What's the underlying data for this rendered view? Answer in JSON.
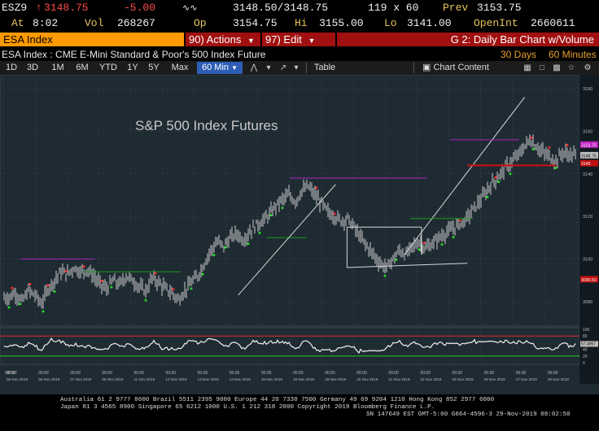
{
  "quote": {
    "ticker": "ESZ9",
    "last": "3148.75",
    "change": "-5.00",
    "bid_ask": "3148.50/3148.75",
    "size": "119 x 60",
    "prev_label": "Prev",
    "prev": "3153.75",
    "at_label": "At",
    "time": "8:02",
    "vol_label": "Vol",
    "volume": "268267",
    "op_label": "Op",
    "open": "3154.75",
    "hi_label": "Hi",
    "high": "3155.00",
    "lo_label": "Lo",
    "low": "3141.00",
    "oi_label": "OpenInt",
    "open_interest": "2660611"
  },
  "command": {
    "security": "ESA Index",
    "actions": "Actions",
    "actions_code": "90)",
    "edit": "Edit",
    "edit_code": "97)",
    "chart_title": "G 2: Daily Bar Chart w/Volume"
  },
  "info": {
    "description": "ESA Index : CME E-Mini Standard & Poor's 500 Index Future",
    "period": "30 Days",
    "interval": "60 Minutes"
  },
  "toolbar": {
    "ranges": [
      "1D",
      "3D",
      "1M",
      "6M",
      "YTD",
      "1Y",
      "5Y",
      "Max"
    ],
    "interval_select": "60 Min",
    "table": "Table",
    "chart_content": "Chart Content"
  },
  "chart": {
    "annotation": "S&P 500 Index Futures",
    "y_ticks": [
      "3180",
      "3160",
      "3140",
      "3120",
      "3100",
      "3080"
    ],
    "price_badges": [
      "3153.75",
      "3148.75",
      "3145",
      "3090.50"
    ],
    "osc_ticks": [
      "100",
      "80",
      "60",
      "57.4957",
      "40",
      "20",
      "0"
    ],
    "time_labels": [
      "08:00",
      "05 Nov 2019",
      "06 Nov 2019",
      "07 Nov 2019",
      "08 Nov 2019",
      "11 Nov 2019",
      "12 Nov 2019",
      "13 Nov 2019",
      "14 Nov 2019",
      "15 Nov 2019",
      "18 Nov 2019",
      "19 Nov 2019",
      "20 Nov 2019",
      "21 Nov 2019",
      "22 Nov 2019",
      "25 Nov 2019",
      "26 Nov 2019",
      "27 Nov 2019",
      "29 Nov 2019"
    ]
  },
  "chart_data": {
    "type": "bar",
    "x_label_dates": [
      "05 Nov 2019",
      "06 Nov 2019",
      "07 Nov 2019",
      "08 Nov 2019",
      "11 Nov 2019",
      "12 Nov 2019",
      "13 Nov 2019",
      "14 Nov 2019",
      "15 Nov 2019",
      "18 Nov 2019",
      "19 Nov 2019",
      "20 Nov 2019",
      "21 Nov 2019",
      "22 Nov 2019",
      "25 Nov 2019",
      "26 Nov 2019",
      "27 Nov 2019",
      "29 Nov 2019"
    ],
    "ylim": [
      3070,
      3185
    ],
    "closes": [
      3082,
      3084,
      3080,
      3085,
      3083,
      3079,
      3086,
      3090,
      3094,
      3093,
      3096,
      3094,
      3095,
      3092,
      3088,
      3086,
      3090,
      3088,
      3092,
      3090,
      3087,
      3085,
      3091,
      3089,
      3086,
      3084,
      3081,
      3085,
      3089,
      3092,
      3098,
      3104,
      3108,
      3106,
      3110,
      3112,
      3109,
      3113,
      3116,
      3118,
      3121,
      3125,
      3128,
      3130,
      3127,
      3132,
      3134,
      3130,
      3126,
      3122,
      3120,
      3118,
      3119,
      3115,
      3110,
      3106,
      3102,
      3098,
      3096,
      3100,
      3104,
      3102,
      3106,
      3108,
      3105,
      3107,
      3110,
      3112,
      3114,
      3116,
      3118,
      3122,
      3126,
      3130,
      3135,
      3138,
      3142,
      3145,
      3148,
      3152,
      3156,
      3153,
      3150,
      3148,
      3146,
      3150,
      3149,
      3148.75
    ],
    "osc_value": 57.4957,
    "osc_ylim": [
      0,
      100
    ]
  },
  "footer": {
    "line1": "Australia 61 2 9777 8600 Brazil 5511 2395 9000 Europe 44 20 7330 7500 Germany 49 69 9204 1210 Hong Kong 852 2977 6000",
    "line2": "Japan 81 3 4565 8900       Singapore 65 6212 1000       U.S. 1 212 318 2000       Copyright 2019 Bloomberg Finance L.P.",
    "line3": "SN 147649 EST  GMT-5:00 G664-4596-3 29-Nov-2019 08:02:50"
  },
  "colors": {
    "chart_bg": "#1f2b33",
    "bar": "#c8c8c8",
    "up_signal": "#22dd22",
    "down_signal": "#ff2a2a",
    "magenta_line": "#b020c0",
    "green_line": "#1a9a1a",
    "support_line": "#d01010",
    "trendline": "#d8d8d8"
  }
}
